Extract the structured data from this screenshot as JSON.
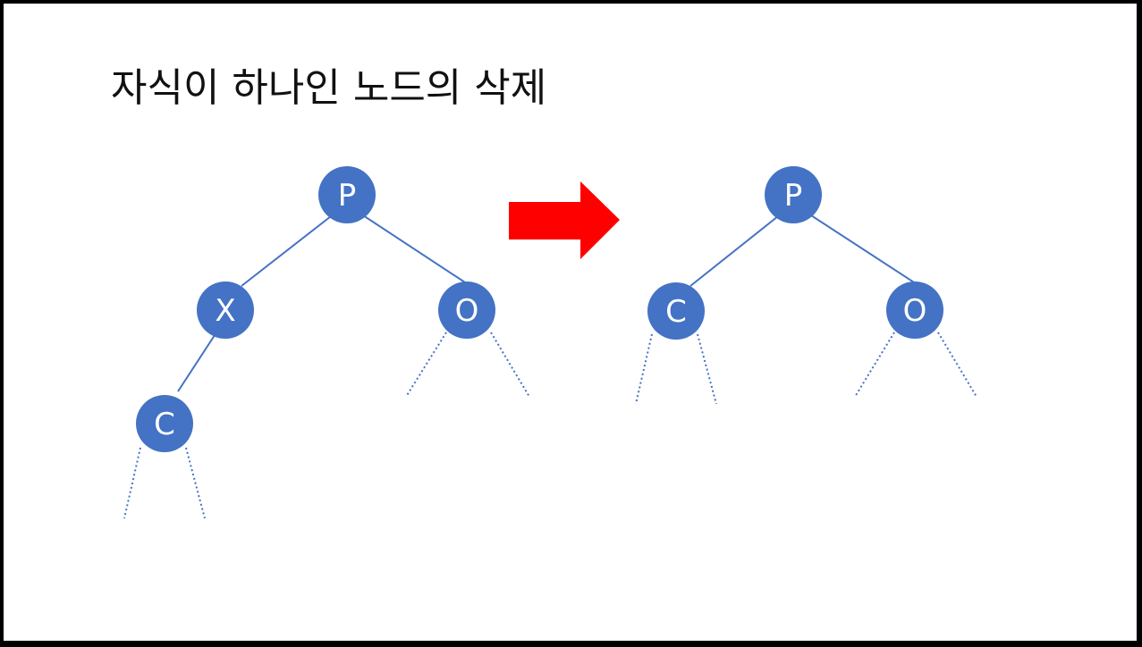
{
  "title": "자식이 하나인 노드의 삭제",
  "colors": {
    "node": "#4472c4",
    "edge": "#4472c4",
    "arrow": "#ff0000",
    "background": "#ffffff"
  },
  "before_tree": {
    "nodes": {
      "p": "P",
      "x": "X",
      "o": "O",
      "c": "C"
    }
  },
  "after_tree": {
    "nodes": {
      "p": "P",
      "c": "C",
      "o": "O"
    }
  },
  "arrow_icon": "right-arrow-icon"
}
